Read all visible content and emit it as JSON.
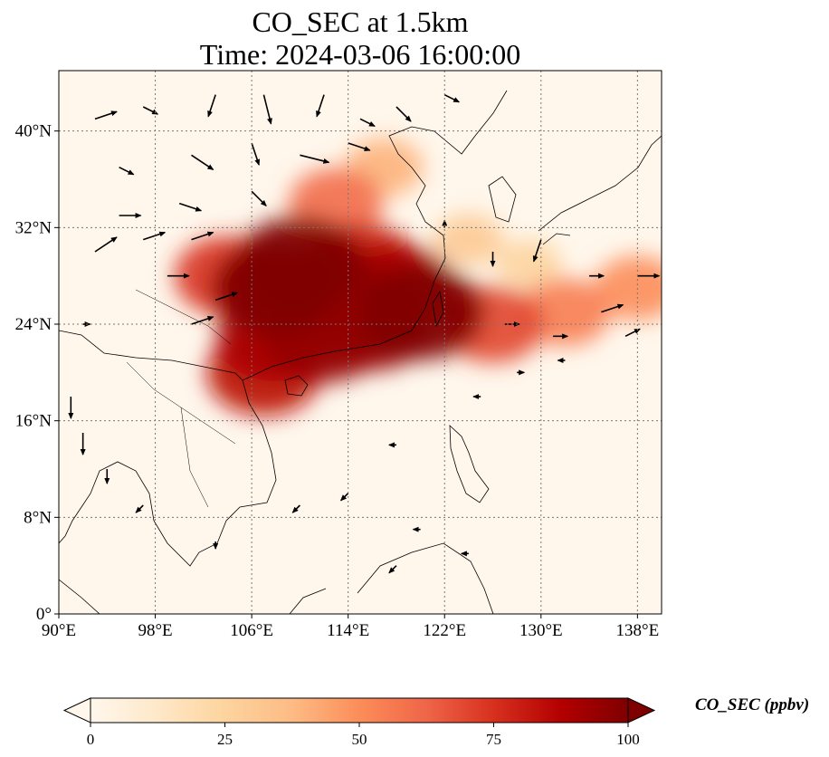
{
  "title": {
    "line1": "CO_SEC at 1.5km",
    "line2": "Time: 2024-03-06 16:00:00"
  },
  "map": {
    "variable": "CO_SEC",
    "level": "1.5km",
    "time": "2024-03-06 16:00:00",
    "lon_range": [
      90,
      140
    ],
    "lat_range": [
      0,
      45
    ],
    "lon_ticks": [
      {
        "value": 90,
        "label": "90°E"
      },
      {
        "value": 98,
        "label": "98°E"
      },
      {
        "value": 106,
        "label": "106°E"
      },
      {
        "value": 114,
        "label": "114°E"
      },
      {
        "value": 122,
        "label": "122°E"
      },
      {
        "value": 130,
        "label": "130°E"
      },
      {
        "value": 138,
        "label": "138°E"
      }
    ],
    "lat_ticks": [
      {
        "value": 0,
        "label": "0°"
      },
      {
        "value": 8,
        "label": "8°N"
      },
      {
        "value": 16,
        "label": "16°N"
      },
      {
        "value": 24,
        "label": "24°N"
      },
      {
        "value": 32,
        "label": "32°N"
      },
      {
        "value": 40,
        "label": "40°N"
      }
    ],
    "gridlines": true,
    "plumes": [
      {
        "lon": 110,
        "lat": 29,
        "level": 100
      },
      {
        "lon": 108,
        "lat": 27,
        "level": 100
      },
      {
        "lon": 112,
        "lat": 27,
        "level": 95
      },
      {
        "lon": 115,
        "lat": 29,
        "level": 80
      },
      {
        "lon": 118,
        "lat": 27,
        "level": 90
      },
      {
        "lon": 120,
        "lat": 25,
        "level": 100
      },
      {
        "lon": 116,
        "lat": 24,
        "level": 95
      },
      {
        "lon": 112,
        "lat": 23,
        "level": 95
      },
      {
        "lon": 108,
        "lat": 23,
        "level": 90
      },
      {
        "lon": 107,
        "lat": 20,
        "level": 85
      },
      {
        "lon": 104,
        "lat": 28,
        "level": 75
      },
      {
        "lon": 113,
        "lat": 34,
        "level": 60
      },
      {
        "lon": 117,
        "lat": 37,
        "level": 40
      },
      {
        "lon": 126,
        "lat": 24,
        "level": 70
      },
      {
        "lon": 132,
        "lat": 25,
        "level": 55
      },
      {
        "lon": 138,
        "lat": 27,
        "level": 50
      },
      {
        "lon": 124,
        "lat": 31,
        "level": 30
      },
      {
        "lon": 129,
        "lat": 29,
        "level": 25
      }
    ],
    "wind_arrows": [
      {
        "lon": 93,
        "lat": 41,
        "u": 3,
        "v": 1
      },
      {
        "lon": 97,
        "lat": 42,
        "u": 2,
        "v": -1
      },
      {
        "lon": 103,
        "lat": 43,
        "u": -1,
        "v": -3
      },
      {
        "lon": 107,
        "lat": 43,
        "u": 1,
        "v": -4
      },
      {
        "lon": 112,
        "lat": 43,
        "u": -1,
        "v": -3
      },
      {
        "lon": 115,
        "lat": 41,
        "u": 2,
        "v": -1
      },
      {
        "lon": 118,
        "lat": 42,
        "u": 2,
        "v": -2
      },
      {
        "lon": 122,
        "lat": 43,
        "u": 2,
        "v": -1
      },
      {
        "lon": 95,
        "lat": 37,
        "u": 2,
        "v": -1
      },
      {
        "lon": 101,
        "lat": 38,
        "u": 3,
        "v": -2
      },
      {
        "lon": 106,
        "lat": 39,
        "u": 1,
        "v": -3
      },
      {
        "lon": 110,
        "lat": 38,
        "u": 4,
        "v": -1
      },
      {
        "lon": 114,
        "lat": 39,
        "u": 3,
        "v": -1
      },
      {
        "lon": 95,
        "lat": 33,
        "u": 3,
        "v": 0
      },
      {
        "lon": 100,
        "lat": 34,
        "u": 3,
        "v": -1
      },
      {
        "lon": 106,
        "lat": 35,
        "u": 2,
        "v": -2
      },
      {
        "lon": 93,
        "lat": 30,
        "u": 3,
        "v": 2
      },
      {
        "lon": 97,
        "lat": 31,
        "u": 3,
        "v": 1
      },
      {
        "lon": 101,
        "lat": 31,
        "u": 3,
        "v": 1
      },
      {
        "lon": 99,
        "lat": 28,
        "u": 3,
        "v": 0
      },
      {
        "lon": 103,
        "lat": 26,
        "u": 3,
        "v": 1
      },
      {
        "lon": 101,
        "lat": 24,
        "u": 3,
        "v": 1
      },
      {
        "lon": 92,
        "lat": 24,
        "u": 1,
        "v": 0
      },
      {
        "lon": 91,
        "lat": 18,
        "u": 0,
        "v": -3
      },
      {
        "lon": 92,
        "lat": 15,
        "u": 0,
        "v": -3
      },
      {
        "lon": 94,
        "lat": 12,
        "u": 0,
        "v": -2
      },
      {
        "lon": 122,
        "lat": 32,
        "u": 0,
        "v": 1
      },
      {
        "lon": 126,
        "lat": 30,
        "u": 0,
        "v": -2
      },
      {
        "lon": 130,
        "lat": 31,
        "u": -1,
        "v": -3
      },
      {
        "lon": 134,
        "lat": 28,
        "u": 2,
        "v": 0
      },
      {
        "lon": 138,
        "lat": 28,
        "u": 3,
        "v": 0
      },
      {
        "lon": 135,
        "lat": 25,
        "u": 3,
        "v": 1
      },
      {
        "lon": 131,
        "lat": 23,
        "u": 2,
        "v": 0
      },
      {
        "lon": 127,
        "lat": 24,
        "u": 2,
        "v": 0
      },
      {
        "lon": 137,
        "lat": 23,
        "u": 2,
        "v": 1
      },
      {
        "lon": 132,
        "lat": 21,
        "u": -1,
        "v": 0
      },
      {
        "lon": 128,
        "lat": 20,
        "u": 1,
        "v": 0
      },
      {
        "lon": 125,
        "lat": 18,
        "u": -1,
        "v": 0
      },
      {
        "lon": 118,
        "lat": 14,
        "u": -1,
        "v": 0
      },
      {
        "lon": 114,
        "lat": 10,
        "u": -1,
        "v": -1
      },
      {
        "lon": 110,
        "lat": 9,
        "u": -1,
        "v": -1
      },
      {
        "lon": 120,
        "lat": 7,
        "u": -1,
        "v": 0
      },
      {
        "lon": 124,
        "lat": 5,
        "u": -1,
        "v": 0
      },
      {
        "lon": 118,
        "lat": 4,
        "u": -1,
        "v": -1
      },
      {
        "lon": 103,
        "lat": 6,
        "u": 0,
        "v": -1
      },
      {
        "lon": 97,
        "lat": 9,
        "u": -1,
        "v": -1
      }
    ]
  },
  "colorbar": {
    "label": "CO_SEC (ppbv)",
    "min": 0,
    "max": 100,
    "extend": "both",
    "colormap": "OrRd",
    "colors": [
      "#fff7ec",
      "#fee8c8",
      "#fdd49e",
      "#fdbb84",
      "#fc8d59",
      "#ef6548",
      "#d7301f",
      "#b30000",
      "#7f0000"
    ],
    "ticks": [
      {
        "value": 0,
        "label": "0"
      },
      {
        "value": 25,
        "label": "25"
      },
      {
        "value": 50,
        "label": "50"
      },
      {
        "value": 75,
        "label": "75"
      },
      {
        "value": 100,
        "label": "100"
      }
    ]
  }
}
